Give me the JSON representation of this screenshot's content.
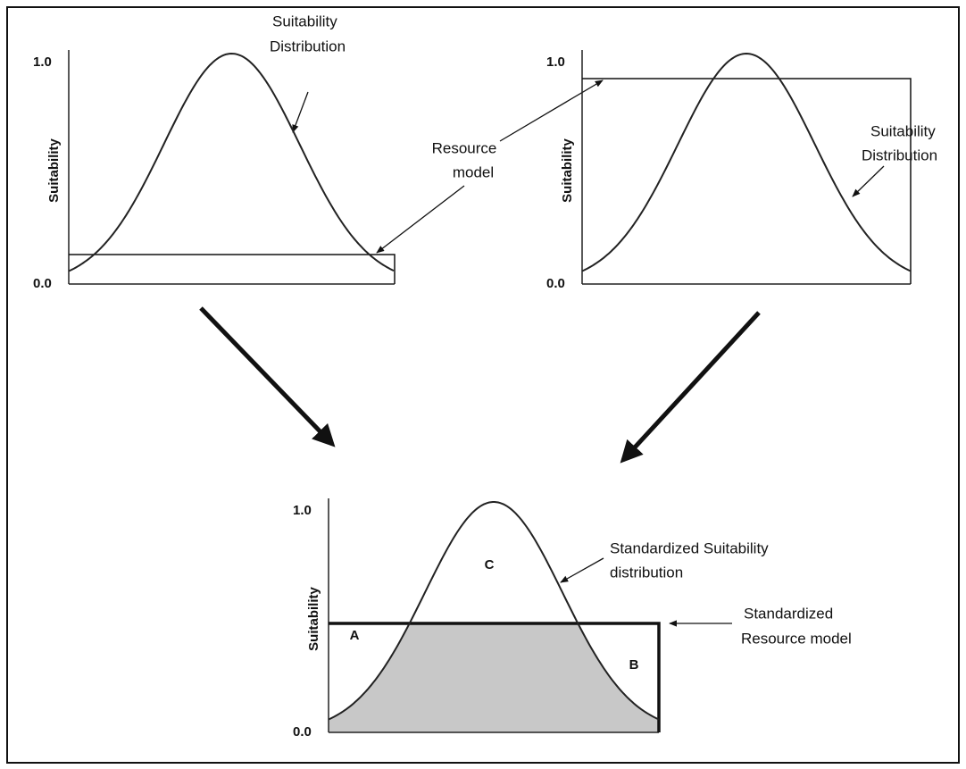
{
  "panels": [
    {
      "y_label": "Suitability",
      "y_top": "1.0",
      "y_bottom": "0.0"
    },
    {
      "y_label": "Suitability",
      "y_top": "1.0",
      "y_bottom": "0.0"
    },
    {
      "y_label": "Suitability",
      "y_top": "1.0",
      "y_bottom": "0.0",
      "regions": [
        "A",
        "B",
        "C"
      ]
    }
  ],
  "annotations": {
    "top_left_distribution": [
      "Suitability",
      "Distribution"
    ],
    "resource_model": [
      "Resource",
      "model"
    ],
    "top_right_distribution": [
      "Suitability",
      "Distribution"
    ],
    "standardized_distribution": [
      "Standardized Suitability",
      "distribution"
    ],
    "standardized_resource": [
      "Standardized",
      "Resource model"
    ]
  }
}
